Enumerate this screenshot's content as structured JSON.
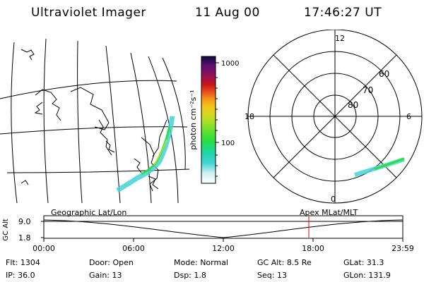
{
  "header": {
    "instrument": "Ultraviolet Imager",
    "date": "11 Aug 00",
    "time": "17:46:27 UT"
  },
  "geo_panel": {
    "title": "Geographic Lat/Lon"
  },
  "colorbar": {
    "unit_label": "photon cm⁻²s⁻¹",
    "ticks": [
      "1000",
      "100"
    ],
    "colors": [
      "#ffffff",
      "#cfeff0",
      "#9fe0e6",
      "#43d3d6",
      "#1fd6a6",
      "#27e03a",
      "#7fe02a",
      "#c8dc22",
      "#f3c81a",
      "#f59a1a",
      "#e8501a",
      "#c8141a",
      "#b0103a",
      "#8a1060",
      "#5a1070",
      "#2a0e5a",
      "#0a0a3a"
    ]
  },
  "polar_panel": {
    "title": "Apex MLat/MLT",
    "mlt_labels": {
      "top": "12",
      "left": "18",
      "right": "6",
      "bottom": "0"
    },
    "lat_labels": [
      "60",
      "70",
      "80"
    ]
  },
  "timeline": {
    "y_axis_label": "GC Alt",
    "y_ticks": [
      "9.0",
      "1.8"
    ],
    "x_ticks": [
      "00:00",
      "06:00",
      "12:00",
      "18:00",
      "23:59"
    ],
    "marker_color": "#e00000"
  },
  "info": {
    "flt": {
      "label": "Flt:",
      "value": "1304"
    },
    "ip": {
      "label": "IP:",
      "value": "36.0"
    },
    "door": {
      "label": "Door:",
      "value": "Open"
    },
    "gain": {
      "label": "Gain:",
      "value": "13"
    },
    "mode": {
      "label": "Mode:",
      "value": "Normal"
    },
    "dsp": {
      "label": "Dsp:",
      "value": "1.8"
    },
    "gcalt": {
      "label": "GC Alt:",
      "value": "8.5 Re"
    },
    "seq": {
      "label": "Seq:",
      "value": "13"
    },
    "glat": {
      "label": "GLat:",
      "value": "31.3"
    },
    "glon": {
      "label": "GLon:",
      "value": "131.9"
    }
  }
}
